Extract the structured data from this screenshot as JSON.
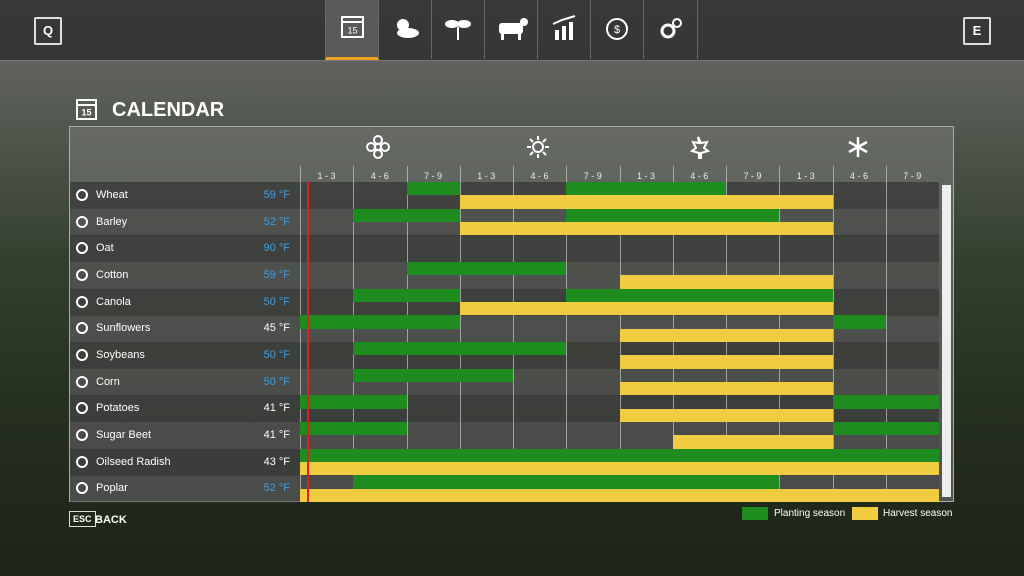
{
  "header": {
    "left_key": "Q",
    "right_key": "E",
    "calendar_day": "15"
  },
  "title": "CALENDAR",
  "columns": [
    "1 - 3",
    "4 - 6",
    "7 - 9",
    "1 - 3",
    "4 - 6",
    "7 - 9",
    "1 - 3",
    "4 - 6",
    "7 - 9",
    "1 - 3",
    "4 - 6",
    "7 - 9"
  ],
  "rows": [
    {
      "name": "Wheat",
      "temp": "59 °F",
      "temp_color": "#3da0e6",
      "planting": [
        [
          2,
          2
        ],
        [
          5,
          7
        ]
      ],
      "harvest": [
        [
          3,
          9
        ]
      ]
    },
    {
      "name": "Barley",
      "temp": "52 °F",
      "temp_color": "#3da0e6",
      "planting": [
        [
          1,
          2
        ],
        [
          5,
          8
        ]
      ],
      "harvest": [
        [
          3,
          9
        ]
      ]
    },
    {
      "name": "Oat",
      "temp": "90 °F",
      "temp_color": "#3da0e6",
      "planting": [],
      "harvest": []
    },
    {
      "name": "Cotton",
      "temp": "59 °F",
      "temp_color": "#3da0e6",
      "planting": [
        [
          2,
          4
        ]
      ],
      "harvest": [
        [
          6,
          9
        ]
      ]
    },
    {
      "name": "Canola",
      "temp": "50 °F",
      "temp_color": "#3da0e6",
      "planting": [
        [
          1,
          2
        ],
        [
          5,
          9
        ]
      ],
      "harvest": [
        [
          3,
          9
        ]
      ]
    },
    {
      "name": "Sunflowers",
      "temp": "45 °F",
      "temp_color": "#ffffff",
      "planting": [
        [
          0,
          2
        ],
        [
          10,
          10
        ]
      ],
      "harvest": [
        [
          6,
          9
        ]
      ]
    },
    {
      "name": "Soybeans",
      "temp": "50 °F",
      "temp_color": "#3da0e6",
      "planting": [
        [
          1,
          4
        ]
      ],
      "harvest": [
        [
          6,
          9
        ]
      ]
    },
    {
      "name": "Corn",
      "temp": "50 °F",
      "temp_color": "#3da0e6",
      "planting": [
        [
          1,
          3
        ]
      ],
      "harvest": [
        [
          6,
          9
        ]
      ]
    },
    {
      "name": "Potatoes",
      "temp": "41 °F",
      "temp_color": "#ffffff",
      "planting": [
        [
          0,
          1
        ],
        [
          10,
          11
        ]
      ],
      "harvest": [
        [
          6,
          9
        ]
      ]
    },
    {
      "name": "Sugar Beet",
      "temp": "41 °F",
      "temp_color": "#ffffff",
      "planting": [
        [
          0,
          1
        ],
        [
          10,
          11
        ]
      ],
      "harvest": [
        [
          7,
          9
        ]
      ]
    },
    {
      "name": "Oilseed Radish",
      "temp": "43 °F",
      "temp_color": "#ffffff",
      "planting": [
        [
          0,
          11
        ]
      ],
      "harvest": [
        [
          0,
          11
        ]
      ]
    },
    {
      "name": "Poplar",
      "temp": "52 °F",
      "temp_color": "#3da0e6",
      "planting": [
        [
          1,
          8
        ]
      ],
      "harvest": [
        [
          0,
          11
        ]
      ]
    }
  ],
  "legend": {
    "planting": {
      "label": "Planting season",
      "color": "#1f8c1f"
    },
    "harvest": {
      "label": "Harvest season",
      "color": "#f0cc40"
    }
  },
  "footer": {
    "key": "ESC",
    "label": "BACK"
  }
}
